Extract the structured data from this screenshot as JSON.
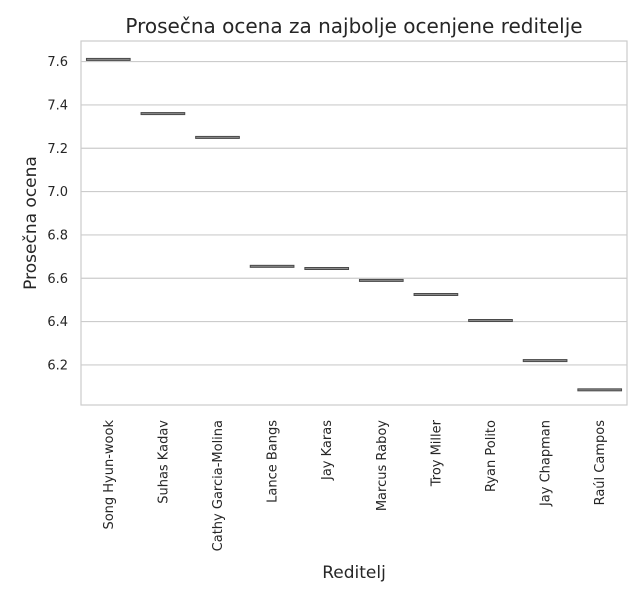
{
  "chart_data": {
    "type": "box",
    "title": "Prosečna ocena za najbolje ocenjene reditelje",
    "xlabel": "Reditelj",
    "ylabel": "Prosečna ocena",
    "categories": [
      "Song Hyun-wook",
      "Suhas Kadav",
      "Cathy Garcia-Molina",
      "Lance Bangs",
      "Jay Karas",
      "Marcus Raboy",
      "Troy Miller",
      "Ryan Polito",
      "Jay Chapman",
      "Raúl Campos"
    ],
    "values": [
      7.61,
      7.36,
      7.25,
      6.655,
      6.645,
      6.59,
      6.525,
      6.405,
      6.22,
      6.085
    ],
    "yticks": [
      6.2,
      6.4,
      6.6,
      6.8,
      7.0,
      7.2,
      7.4,
      7.6
    ],
    "ylim": [
      6.015,
      7.695
    ],
    "grid": true,
    "colors": {
      "grid": "#cccccc",
      "spine": "#cccccc",
      "box_line": "#4a4a4a",
      "text": "#262626"
    }
  }
}
